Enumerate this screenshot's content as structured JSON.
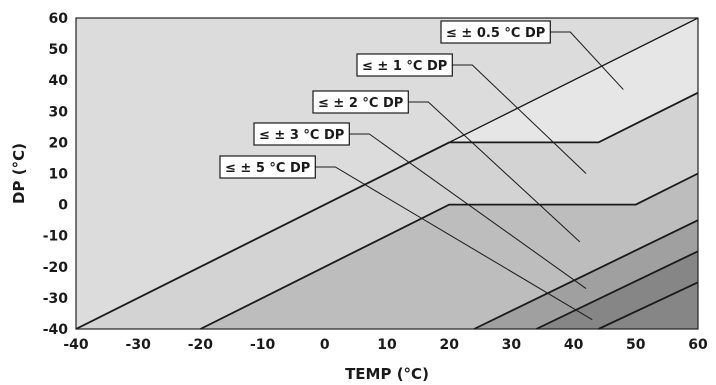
{
  "chart_data": {
    "type": "area",
    "xlabel": "TEMP (°C)",
    "ylabel": "DP (°C)",
    "xlim": [
      -40,
      60
    ],
    "ylim": [
      -40,
      60
    ],
    "xticks": [
      -40,
      -30,
      -20,
      -10,
      0,
      10,
      20,
      30,
      40,
      50,
      60
    ],
    "yticks": [
      -40,
      -30,
      -20,
      -10,
      0,
      10,
      20,
      30,
      40,
      50,
      60
    ],
    "grid": false,
    "background": "#dcdcdc",
    "regions": [
      {
        "name": "≤ ± 0.5 °C DP",
        "color": "#e6e6e6",
        "boundary": [
          [
            -40,
            -40
          ],
          [
            60,
            60
          ]
        ],
        "pointer_target": [
          48,
          37
        ]
      },
      {
        "name": "≤ ± 1 °C DP",
        "color": "#d3d3d3",
        "boundary": [
          [
            -40,
            -40
          ],
          [
            20,
            20
          ],
          [
            44,
            20
          ],
          [
            60,
            36
          ]
        ],
        "pointer_target": [
          42,
          10
        ]
      },
      {
        "name": "≤ ± 2 °C DP",
        "color": "#bdbdbd",
        "boundary": [
          [
            -20,
            -40
          ],
          [
            20,
            0
          ],
          [
            50,
            0
          ],
          [
            60,
            10
          ]
        ],
        "pointer_target": [
          41,
          -12
        ]
      },
      {
        "name": "≤ ± 3 °C DP",
        "color": "#a0a0a0",
        "boundary": [
          [
            24,
            -40
          ],
          [
            60,
            -5
          ]
        ],
        "pointer_target": [
          42,
          -27
        ]
      },
      {
        "name": "≤ ± 5 °C DP",
        "color": "#868686",
        "boundary": [
          [
            34,
            -40
          ],
          [
            60,
            -15
          ]
        ],
        "pointer_target": [
          43,
          -37
        ]
      }
    ],
    "bottom_region": {
      "boundary": [
        [
          44,
          -40
        ],
        [
          60,
          -25
        ]
      ],
      "color": "#868686"
    }
  }
}
